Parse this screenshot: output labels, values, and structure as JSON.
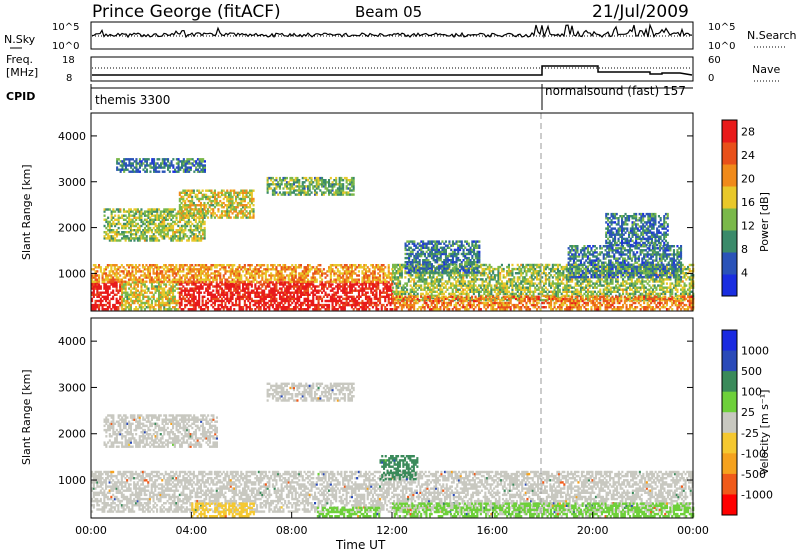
{
  "header": {
    "station": "Prince George (fitACF)",
    "beam": "Beam 05",
    "date": "21/Jul/2009"
  },
  "noise_panel": {
    "left_label": "N.Sky",
    "right_label": "N.Search",
    "left_top": "10^5",
    "left_bottom": "10^0",
    "right_top": "10^5",
    "right_bottom": "10^0"
  },
  "freq_panel": {
    "left_label_line1": "Freq.",
    "left_label_line2": "[MHz]",
    "right_label": "Nave",
    "left_top": "18",
    "left_bottom": "8",
    "right_top": "60",
    "right_bottom": "0"
  },
  "cpid_panel": {
    "label": "CPID",
    "segments": [
      {
        "name": "themis 3300",
        "start_h": 0.0
      },
      {
        "name": "normalsound (fast) 157",
        "start_h": 18.0
      }
    ]
  },
  "colors": {
    "power_scale": [
      "#1a2ee0",
      "#2a53b8",
      "#3a8a6a",
      "#7ab84a",
      "#e8c82a",
      "#f08a1a",
      "#e8501a",
      "#e81a1a"
    ],
    "velocity_scale": [
      "#ff0000",
      "#f05a1a",
      "#f5a21e",
      "#f5c830",
      "#c8c8c0",
      "#6ed03a",
      "#3a8a5a",
      "#2a4ab8",
      "#1a2ae0"
    ]
  },
  "chart_data": [
    {
      "type": "heatmap",
      "panel": "power",
      "xlabel": "",
      "ylabel": "Slant Range [km]",
      "xlim": [
        0,
        24
      ],
      "ylim": [
        180,
        4500
      ],
      "yticks": [
        1000,
        2000,
        3000,
        4000
      ],
      "colorbar": {
        "label": "Power [dB]",
        "ticks": [
          "4",
          "8",
          "12",
          "16",
          "20",
          "24",
          "28"
        ],
        "range": [
          0,
          30
        ]
      },
      "echo_regions": [
        {
          "t0": 0.0,
          "t1": 1.2,
          "r0": 200,
          "r1": 800,
          "level": 29
        },
        {
          "t0": 1.2,
          "t1": 3.5,
          "r0": 200,
          "r1": 800,
          "level": 16
        },
        {
          "t0": 3.5,
          "t1": 12.0,
          "r0": 200,
          "r1": 800,
          "level": 29
        },
        {
          "t0": 0.0,
          "t1": 12.0,
          "r0": 800,
          "r1": 1200,
          "level": 20
        },
        {
          "t0": 0.5,
          "t1": 4.5,
          "r0": 1700,
          "r1": 2400,
          "level": 14
        },
        {
          "t0": 3.5,
          "t1": 6.5,
          "r0": 2200,
          "r1": 2800,
          "level": 16
        },
        {
          "t0": 7.0,
          "t1": 10.5,
          "r0": 2700,
          "r1": 3100,
          "level": 12
        },
        {
          "t0": 1.0,
          "t1": 4.5,
          "r0": 3200,
          "r1": 3500,
          "level": 8
        },
        {
          "t0": 12.0,
          "t1": 24.0,
          "r0": 400,
          "r1": 1200,
          "level": 14
        },
        {
          "t0": 12.0,
          "t1": 24.0,
          "r0": 200,
          "r1": 500,
          "level": 22
        },
        {
          "t0": 12.5,
          "t1": 15.5,
          "r0": 1000,
          "r1": 1700,
          "level": 8
        },
        {
          "t0": 19.0,
          "t1": 23.5,
          "r0": 900,
          "r1": 1600,
          "level": 8
        },
        {
          "t0": 20.5,
          "t1": 23.0,
          "r0": 1600,
          "r1": 2300,
          "level": 8
        }
      ]
    },
    {
      "type": "heatmap",
      "panel": "velocity",
      "xlabel": "Time UT",
      "ylabel": "Slant Range [km]",
      "xlim": [
        0,
        24
      ],
      "ylim": [
        180,
        4500
      ],
      "xticks": [
        "00:00",
        "04:00",
        "08:00",
        "12:00",
        "16:00",
        "20:00",
        "00:00"
      ],
      "yticks": [
        1000,
        2000,
        3000,
        4000
      ],
      "colorbar": {
        "label": "Velocity [m s⁻¹]",
        "ticks": [
          "1000",
          "500",
          "100",
          "25",
          "-25",
          "-100",
          "-500",
          "-1000"
        ]
      },
      "echo_regions": [
        {
          "t0": 0.0,
          "t1": 24.0,
          "r0": 300,
          "r1": 1200,
          "velocity": 0
        },
        {
          "t0": 4.0,
          "t1": 6.5,
          "r0": 200,
          "r1": 500,
          "velocity": -80
        },
        {
          "t0": 9.0,
          "t1": 11.5,
          "r0": 200,
          "r1": 400,
          "velocity": 60
        },
        {
          "t0": 11.5,
          "t1": 13.0,
          "r0": 1000,
          "r1": 1500,
          "velocity": 150
        },
        {
          "t0": 0.5,
          "t1": 5.0,
          "r0": 1700,
          "r1": 2400,
          "velocity": 0
        },
        {
          "t0": 7.0,
          "t1": 10.5,
          "r0": 2700,
          "r1": 3100,
          "velocity": 0
        },
        {
          "t0": 12.0,
          "t1": 24.0,
          "r0": 200,
          "r1": 500,
          "velocity": 40
        }
      ]
    }
  ]
}
